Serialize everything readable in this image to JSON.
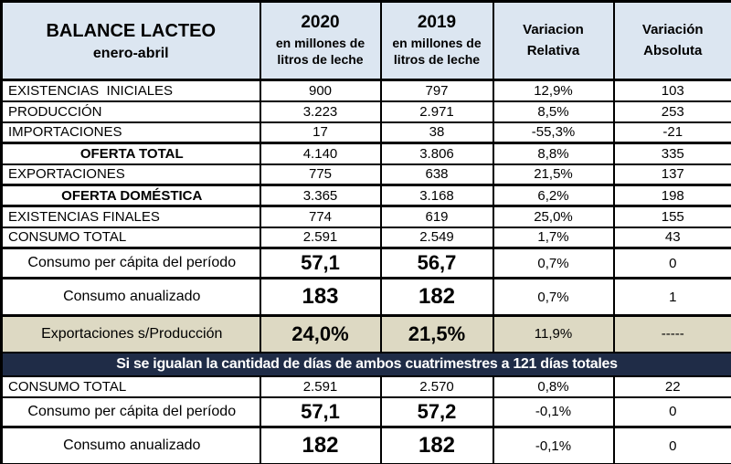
{
  "header": {
    "title": "BALANCE LACTEO",
    "subtitle": "enero-abril",
    "col_2020": {
      "year": "2020",
      "unit": "en millones de litros de leche"
    },
    "col_2019": {
      "year": "2019",
      "unit": "en millones de litros de leche"
    },
    "col_rel": "Variacion Relativa",
    "col_abs": "Variación Absoluta"
  },
  "colors": {
    "header_bg": "#DCE6F1",
    "ratio_row_bg": "#DDD9C3",
    "banner_bg": "#1F2C47",
    "banner_text": "#FFFFFF",
    "border": "#000000"
  },
  "rows": [
    {
      "label": "EXISTENCIAS  INICIALES",
      "y2020": "900",
      "y2019": "797",
      "rel": "12,9%",
      "abs": "103",
      "style": "normal"
    },
    {
      "label": "PRODUCCIÓN",
      "y2020": "3.223",
      "y2019": "2.971",
      "rel": "8,5%",
      "abs": "253",
      "style": "normal"
    },
    {
      "label": "IMPORTACIONES",
      "y2020": "17",
      "y2019": "38",
      "rel": "-55,3%",
      "abs": "-21",
      "style": "normal"
    },
    {
      "label": "OFERTA TOTAL",
      "y2020": "4.140",
      "y2019": "3.806",
      "rel": "8,8%",
      "abs": "335",
      "style": "total",
      "thick_top": true
    },
    {
      "label": "EXPORTACIONES",
      "y2020": "775",
      "y2019": "638",
      "rel": "21,5%",
      "abs": "137",
      "style": "normal"
    },
    {
      "label": "OFERTA DOMÉSTICA",
      "y2020": "3.365",
      "y2019": "3.168",
      "rel": "6,2%",
      "abs": "198",
      "style": "total",
      "thick_top": true,
      "thick_bottom": true
    },
    {
      "label": "EXISTENCIAS FINALES",
      "y2020": "774",
      "y2019": "619",
      "rel": "25,0%",
      "abs": "155",
      "style": "normal"
    },
    {
      "label": "CONSUMO TOTAL",
      "y2020": "2.591",
      "y2019": "2.549",
      "rel": "1,7%",
      "abs": "43",
      "style": "normal"
    },
    {
      "label": "Consumo per cápita del período",
      "y2020": "57,1",
      "y2019": "56,7",
      "rel": "0,7%",
      "abs": "0",
      "style": "percapita",
      "thick_top": true
    },
    {
      "label": "Consumo anualizado",
      "y2020": "183",
      "y2019": "182",
      "rel": "0,7%",
      "abs": "1",
      "style": "anualizado",
      "thick_top": true
    },
    {
      "label": "Exportaciones s/Producción",
      "y2020": "24,0%",
      "y2019": "21,5%",
      "rel": "11,9%",
      "abs": "-----",
      "style": "ratio",
      "thick_top": true
    },
    {
      "type": "banner",
      "text": "Si se igualan la cantidad de días de ambos cuatrimestres a 121 días totales"
    },
    {
      "label": "CONSUMO TOTAL",
      "y2020": "2.591",
      "y2019": "2.570",
      "rel": "0,8%",
      "abs": "22",
      "style": "normal"
    },
    {
      "label": "Consumo per cápita del período",
      "y2020": "57,1",
      "y2019": "57,2",
      "rel": "-0,1%",
      "abs": "0",
      "style": "percapita"
    },
    {
      "label": "Consumo anualizado",
      "y2020": "182",
      "y2019": "182",
      "rel": "-0,1%",
      "abs": "0",
      "style": "anualizado",
      "thick_top": true
    }
  ]
}
